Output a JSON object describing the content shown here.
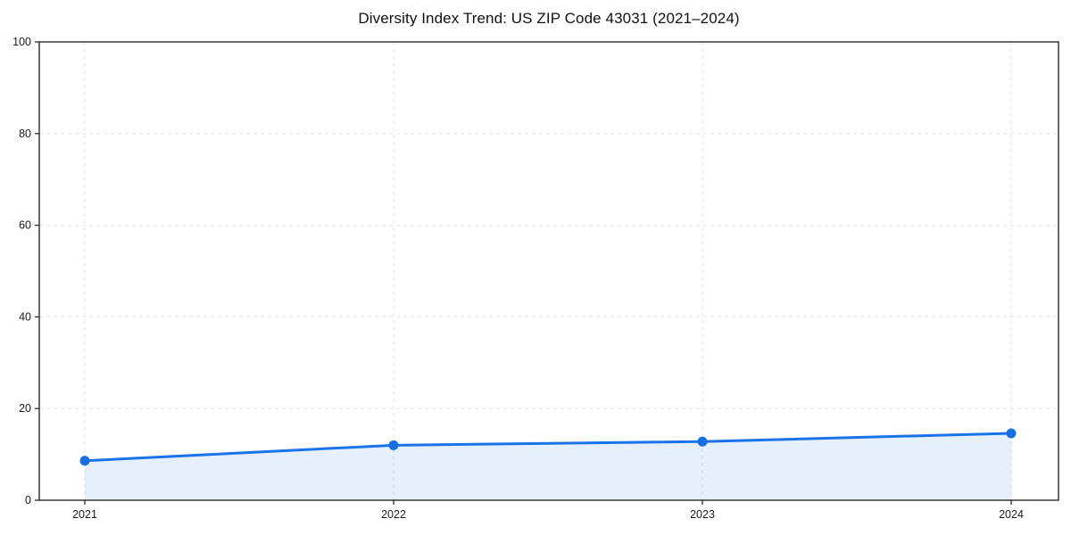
{
  "chart_data": {
    "type": "area",
    "title": "Diversity Index Trend: US ZIP Code 43031 (2021–2024)",
    "x": [
      2021,
      2022,
      2023,
      2024
    ],
    "series": [
      {
        "name": "Diversity Index",
        "values": [
          8.6,
          12.0,
          12.8,
          14.6
        ]
      }
    ],
    "xlabel": "",
    "ylabel": "",
    "ylim": [
      0,
      100
    ],
    "yticks": [
      0,
      20,
      40,
      60,
      80,
      100
    ],
    "xtick_labels": [
      "2021",
      "2022",
      "2023",
      "2024"
    ],
    "grid": "dashed",
    "legend": "none",
    "colors": {
      "line": "#1a73e8",
      "marker": "#1a6fe0",
      "fill": "#1a73e8",
      "fill_opacity": 0.11,
      "grid": "#e3e3e3",
      "spine": "#1a1a1a",
      "tick_text": "#1a1a1a",
      "background": "#ffffff"
    }
  }
}
